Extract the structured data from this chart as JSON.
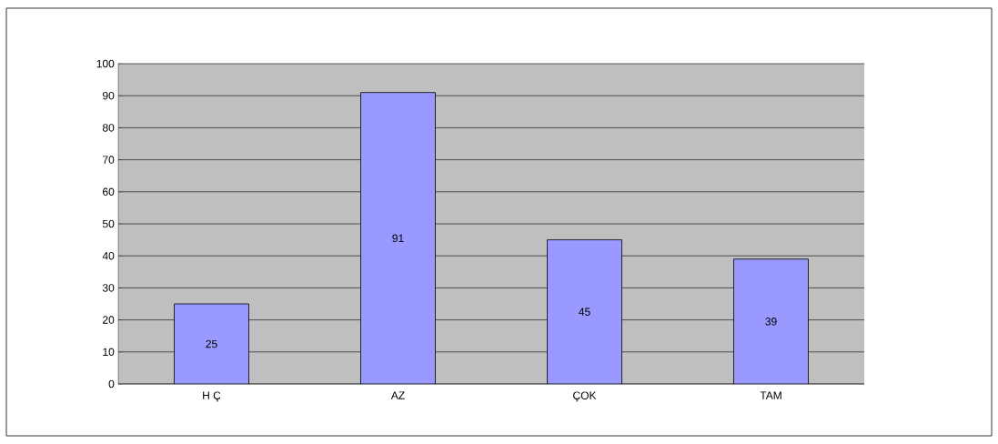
{
  "chart_data": {
    "type": "bar",
    "categories": [
      "H Ç",
      "AZ",
      "ÇOK",
      "TAM"
    ],
    "values": [
      25,
      91,
      45,
      39
    ],
    "color": "#9999ff",
    "ylim": [
      0,
      100
    ],
    "yticks": [
      0,
      10,
      20,
      30,
      40,
      50,
      60,
      70,
      80,
      90,
      100
    ],
    "grid": "y",
    "data_labels": true
  }
}
